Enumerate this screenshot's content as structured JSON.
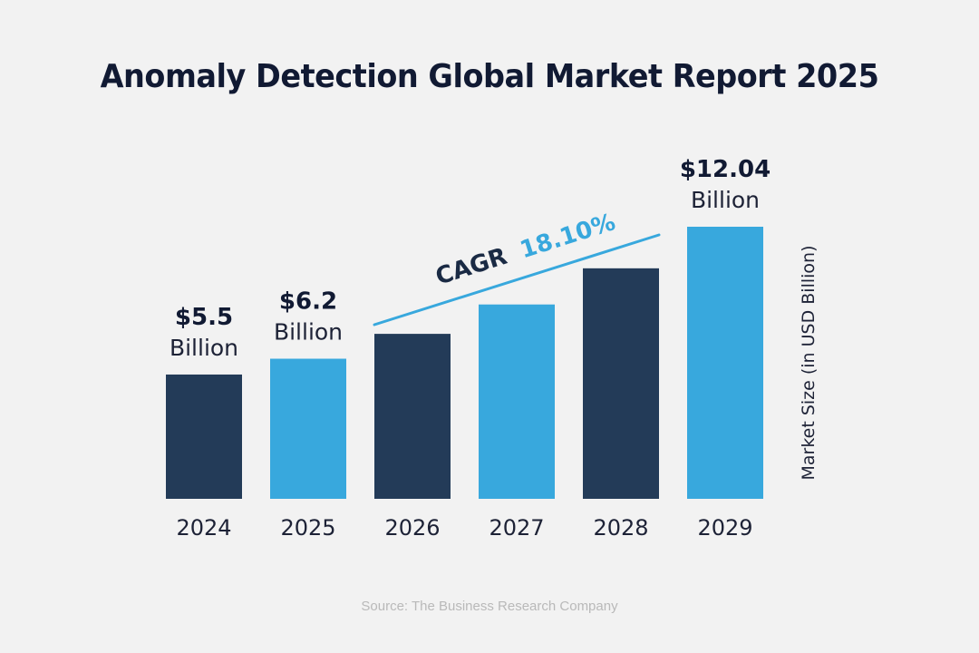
{
  "chart_data": {
    "type": "bar",
    "title": "Anomaly Detection Global Market Report 2025",
    "categories": [
      "2024",
      "2025",
      "2026",
      "2027",
      "2028",
      "2029"
    ],
    "values": [
      5.5,
      6.2,
      7.3,
      8.6,
      10.2,
      12.04
    ],
    "value_labels": [
      {
        "index": 0,
        "amount": "$5.5",
        "unit": "Billion"
      },
      {
        "index": 1,
        "amount": "$6.2",
        "unit": "Billion"
      },
      {
        "index": 5,
        "amount": "$12.04",
        "unit": "Billion"
      }
    ],
    "annotation": {
      "label": "CAGR",
      "rate": "18.10%"
    },
    "xlabel": "",
    "ylabel": "Market Size (in USD Billion)",
    "ylim": [
      0,
      12.04
    ],
    "grid": false,
    "legend": "none",
    "colors": [
      "#233b58",
      "#38a8dd"
    ],
    "accent": "#38a8dd"
  },
  "source": "Source: The Business Research Company"
}
